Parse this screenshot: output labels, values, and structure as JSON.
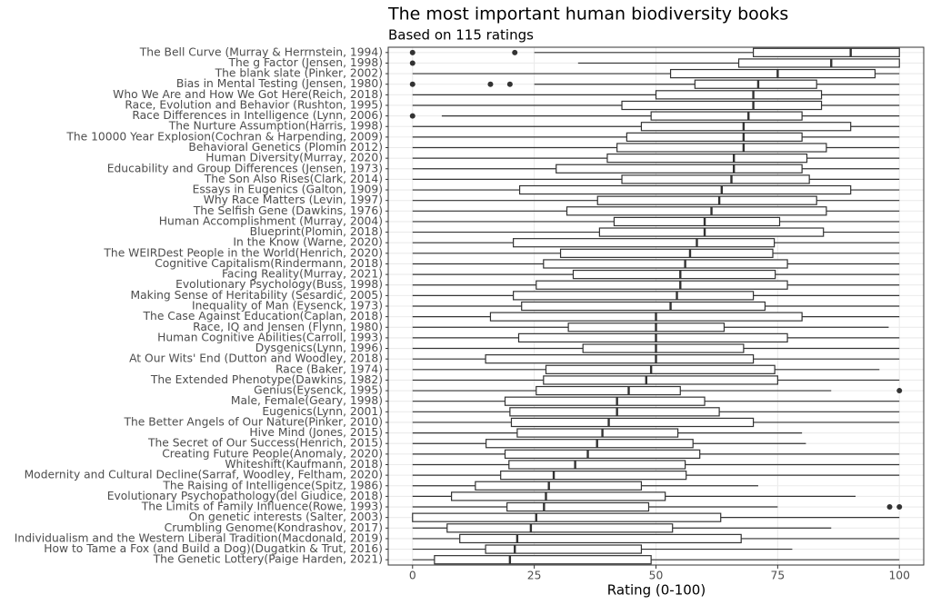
{
  "chart_data": {
    "type": "boxplot",
    "title": "The most important human biodiversity books",
    "subtitle": "Based on 115 ratings",
    "x_label": "Rating (0-100)",
    "categories": [
      "The Bell Curve (Murray & Herrnstein, 1994)",
      "The g Factor (Jensen, 1998)",
      "The blank slate (Pinker, 2002)",
      "Bias in Mental Testing (Jensen, 1980)",
      "Who We Are and How We Got Here(Reich, 2018)",
      "Race, Evolution and Behavior (Rushton, 1995)",
      "Race Differences in Intelligence (Lynn, 2006)",
      "The Nurture Assumption(Harris, 1998)",
      "The 10000 Year Explosion(Cochran & Harpending, 2009)",
      "Behavioral Genetics (Plomin 2012)",
      "Human Diversity(Murray, 2020)",
      "Educability and Group Differences (Jensen, 1973)",
      "The Son Also Rises(Clark, 2014)",
      "Essays in Eugenics (Galton, 1909)",
      "Why Race Matters (Levin, 1997)",
      "The Selfish Gene (Dawkins, 1976)",
      "Human Accomplishment (Murray, 2004)",
      "Blueprint(Plomin, 2018)",
      "In the Know (Warne, 2020)",
      "The WEIRDest People in the World(Henrich, 2020)",
      "Cognitive Capitalism(Rindermann, 2018)",
      "Facing Reality(Murray, 2021)",
      "Evolutionary Psychology(Buss, 1998)",
      "Making Sense of Heritability (Sesardić, 2005)",
      "Inequality of Man (Eysenck, 1973)",
      "The Case Against Education(Caplan, 2018)",
      "Race, IQ and Jensen (Flynn, 1980)",
      "Human Cognitive Abilities(Carroll, 1993)",
      "Dysgenics(Lynn, 1996)",
      "At Our Wits' End (Dutton and Woodley, 2018)",
      "Race (Baker, 1974)",
      "The Extended Phenotype(Dawkins, 1982)",
      "Genius(Eysenck, 1995)",
      "Male, Female(Geary, 1998)",
      "Eugenics(Lynn, 2001)",
      "The Better Angels of Our Nature(Pinker, 2010)",
      "Hive Mind (Jones, 2015)",
      "The Secret of Our Success(Henrich, 2015)",
      "Creating Future People(Anomaly, 2020)",
      "Whiteshift(Kaufmann, 2018)",
      "Modernity and Cultural Decline(Sarraf, Woodley, Feltham, 2020)",
      "The Raising of Intelligence(Spitz, 1986)",
      "Evolutionary Psychopathology(del Giudice, 2018)",
      "The Limits of Family Influence(Rowe, 1993)",
      "On genetic interests (Salter, 2003)",
      "Crumbling Genome(Kondrashov, 2017)",
      "Individualism and the Western Liberal Tradition(Macdonald, 2019)",
      "How to Tame a Fox (and Build a Dog)(Dugatkin & Trut, 2016)",
      "The Genetic Lottery(Paige Harden, 2021)"
    ],
    "min": [
      25,
      34,
      0,
      25,
      0,
      0,
      6,
      0,
      0,
      0,
      0,
      0,
      0,
      0,
      0,
      0,
      0,
      0,
      0,
      0,
      0,
      0,
      0,
      0,
      0,
      0,
      0,
      0,
      0,
      0,
      0,
      0,
      0,
      0,
      0,
      0,
      0,
      0,
      0,
      0,
      0,
      0,
      0,
      0,
      0,
      0,
      0,
      0,
      0
    ],
    "q1": [
      70,
      67,
      53,
      58,
      50,
      43,
      49,
      47,
      44,
      42,
      40,
      29.5,
      43,
      22,
      38,
      31.7,
      41.4,
      38.4,
      20.7,
      30.4,
      26.9,
      33,
      25.4,
      20.7,
      22.4,
      16,
      32,
      21.8,
      35,
      15,
      27.4,
      26.9,
      25.4,
      19,
      20,
      20.3,
      21.5,
      15.1,
      19,
      19.8,
      18.1,
      12.9,
      8,
      19.4,
      0,
      7.1,
      9.7,
      15,
      4.5
    ],
    "median": [
      90,
      86,
      75,
      71,
      70,
      70,
      69,
      68,
      68,
      68,
      66,
      66,
      65.5,
      63.5,
      63,
      61.4,
      60,
      60,
      58.4,
      57,
      56,
      55,
      55,
      54.3,
      53,
      50,
      50,
      50,
      50,
      50,
      49,
      48,
      44.4,
      42,
      42,
      40.3,
      39,
      37.9,
      36,
      33.4,
      29,
      28,
      27.4,
      27,
      25.4,
      24.3,
      21.5,
      21,
      20
    ],
    "q3": [
      100,
      100,
      95,
      83,
      84,
      84,
      80,
      90,
      80,
      85,
      81,
      80,
      81.5,
      90,
      83,
      85,
      75.4,
      84.4,
      74.3,
      74,
      77,
      74.5,
      77,
      70,
      72.4,
      80,
      64,
      77,
      68,
      70,
      74.4,
      75,
      55,
      60,
      63,
      70,
      54.5,
      57.6,
      59,
      56,
      56.2,
      47,
      51.9,
      48.5,
      63.3,
      53.4,
      67.5,
      47,
      49
    ],
    "max": [
      100,
      100,
      100,
      100,
      100,
      100,
      100,
      100,
      100,
      100,
      100,
      100,
      100,
      100,
      100,
      100,
      100,
      100,
      100,
      100,
      100,
      100,
      100,
      100,
      100,
      100,
      97.8,
      100,
      100,
      100,
      95.9,
      100,
      86,
      100,
      100,
      100,
      80,
      80.8,
      100,
      100,
      100,
      71,
      91,
      75,
      100,
      86,
      100,
      78,
      100
    ],
    "outliers": [
      [
        0,
        21
      ],
      [
        0
      ],
      [],
      [
        0,
        16,
        20
      ],
      [],
      [],
      [
        0
      ],
      [],
      [],
      [],
      [],
      [],
      [],
      [],
      [],
      [],
      [],
      [],
      [],
      [],
      [],
      [],
      [],
      [],
      [],
      [],
      [],
      [],
      [],
      [],
      [],
      [],
      [
        100
      ],
      [],
      [],
      [],
      [],
      [],
      [],
      [],
      [],
      [],
      [],
      [
        98,
        100
      ],
      [],
      [],
      [],
      [],
      []
    ],
    "xlim": [
      -5,
      105
    ],
    "xticks": [
      0,
      25,
      50,
      75,
      100
    ],
    "grid": true
  }
}
